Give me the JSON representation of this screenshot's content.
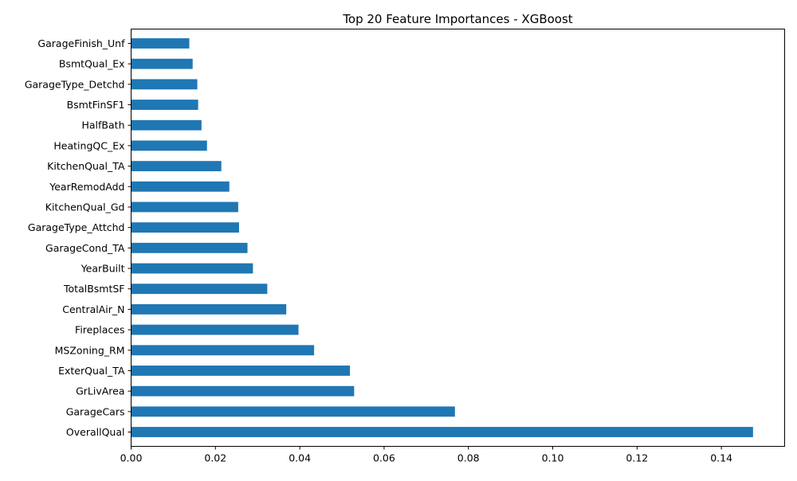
{
  "chart_data": {
    "type": "bar",
    "orientation": "horizontal",
    "title": "Top 20 Feature Importances - XGBoost",
    "xlabel": "",
    "ylabel": "",
    "xlim": [
      0,
      0.155
    ],
    "xticks": [
      "0.00",
      "0.02",
      "0.04",
      "0.06",
      "0.08",
      "0.10",
      "0.12",
      "0.14"
    ],
    "grid": false,
    "bar_color": "#1f77b4",
    "categories": [
      "OverallQual",
      "GarageCars",
      "GrLivArea",
      "ExterQual_TA",
      "MSZoning_RM",
      "Fireplaces",
      "CentralAir_N",
      "TotalBsmtSF",
      "YearBuilt",
      "GarageCond_TA",
      "GarageType_Attchd",
      "KitchenQual_Gd",
      "YearRemodAdd",
      "KitchenQual_TA",
      "HeatingQC_Ex",
      "HalfBath",
      "BsmtFinSF1",
      "GarageType_Detchd",
      "BsmtQual_Ex",
      "GarageFinish_Unf"
    ],
    "values": [
      0.1475,
      0.0768,
      0.0529,
      0.0519,
      0.0434,
      0.0397,
      0.0368,
      0.0323,
      0.0289,
      0.0276,
      0.0256,
      0.0254,
      0.0233,
      0.0214,
      0.018,
      0.0167,
      0.0159,
      0.0157,
      0.0146,
      0.0138
    ]
  }
}
